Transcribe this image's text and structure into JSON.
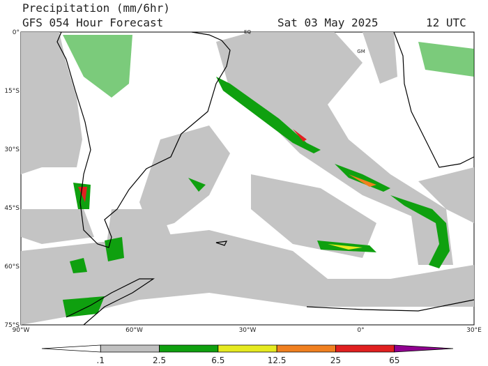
{
  "header": {
    "title": "Precipitation (mm/6hr)",
    "subtitle": "GFS 054 Hour Forecast",
    "date": "Sat 03 May 2025",
    "time": "12 UTC"
  },
  "map": {
    "lat_labels": [
      "0°",
      "15°S",
      "30°S",
      "45°S",
      "60°S",
      "75°S"
    ],
    "lon_labels": [
      "90°W",
      "60°W",
      "30°W",
      "0°",
      "30°E"
    ],
    "place_labels": [
      "EQ",
      "GM"
    ]
  },
  "legend": {
    "colors": [
      "#ffffff",
      "#c0c0c0",
      "#0fa00f",
      "#e6ea20",
      "#f08020",
      "#e02020",
      "#900090"
    ],
    "labels": [
      ".1",
      "2.5",
      "6.5",
      "12.5",
      "25",
      "65"
    ]
  }
}
